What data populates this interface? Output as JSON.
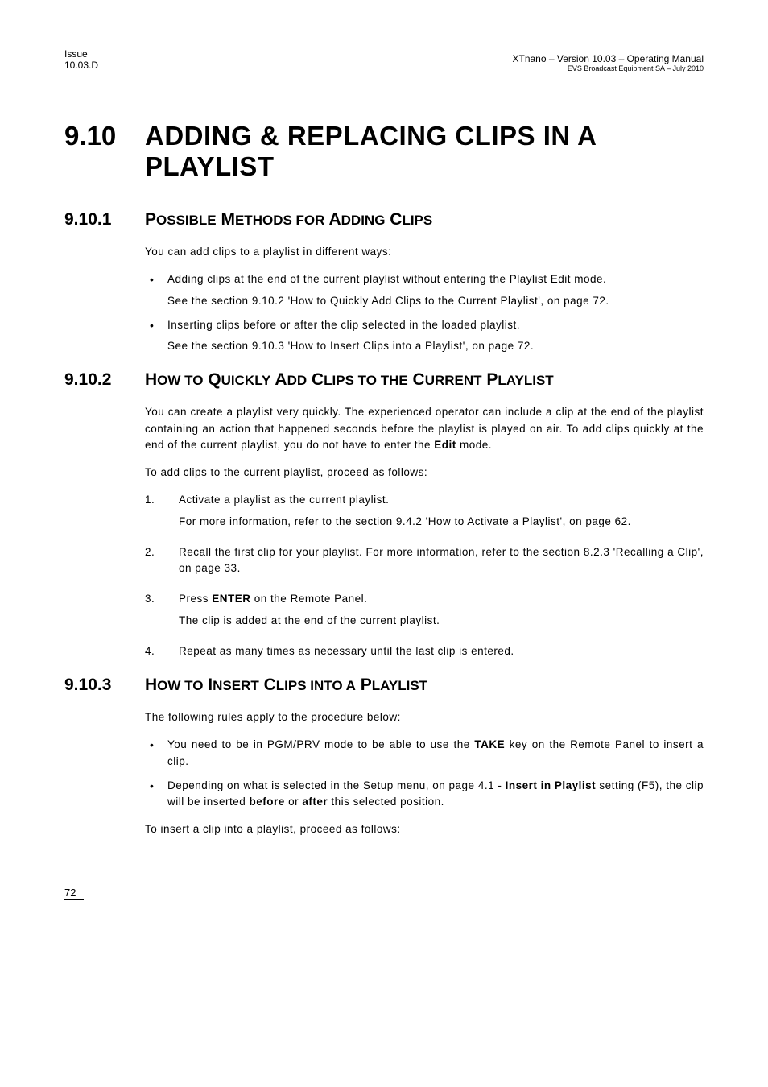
{
  "header": {
    "issue_label": "Issue",
    "issue_value": "10.03.D",
    "product_line": "XTnano – Version 10.03 – Operating Manual",
    "company_line": "EVS Broadcast Equipment SA – July 2010"
  },
  "section": {
    "number": "9.10",
    "title": "ADDING & REPLACING CLIPS IN A PLAYLIST"
  },
  "sub1": {
    "number": "9.10.1",
    "title_parts": [
      "P",
      "OSSIBLE",
      " M",
      "ETHODS FOR",
      " A",
      "DDING",
      " C",
      "LIPS"
    ],
    "intro": "You can add clips to a playlist in different ways:",
    "bullets": [
      {
        "main": "Adding clips at the end of the current playlist without entering the Playlist Edit mode.",
        "sub": "See the section 9.10.2 'How to Quickly Add Clips to the Current Playlist', on page 72."
      },
      {
        "main": "Inserting clips before or after the clip selected in the loaded playlist.",
        "sub": "See the section 9.10.3 'How to Insert Clips into a Playlist', on page 72."
      }
    ]
  },
  "sub2": {
    "number": "9.10.2",
    "title_parts": [
      "H",
      "OW TO",
      " Q",
      "UICKLY",
      " A",
      "DD",
      " C",
      "LIPS TO THE",
      " C",
      "URRENT",
      " P",
      "LAYLIST"
    ],
    "para1_a": "You can create a playlist very quickly. The experienced operator can include a clip at the end of the playlist containing an action that happened seconds before the playlist is played on air. To add clips quickly at the end of the current playlist, you do not have to enter the ",
    "para1_bold": "Edit",
    "para1_b": " mode.",
    "para2": "To add clips to the current playlist, proceed as follows:",
    "steps": [
      {
        "n": "1.",
        "main": "Activate a playlist as the current playlist.",
        "sub": "For more information, refer to the section 9.4.2 'How to Activate a Playlist', on page 62."
      },
      {
        "n": "2.",
        "main": "Recall the first clip for your playlist. For more information, refer to the section 8.2.3 'Recalling a Clip', on page 33."
      },
      {
        "n": "3.",
        "main_a": "Press ",
        "main_bold": "ENTER",
        "main_b": " on the Remote Panel.",
        "sub": "The clip is added at the end of the current playlist."
      },
      {
        "n": "4.",
        "main": "Repeat as many times as necessary until the last clip is entered."
      }
    ]
  },
  "sub3": {
    "number": "9.10.3",
    "title_parts": [
      "H",
      "OW TO",
      " I",
      "NSERT",
      " C",
      "LIPS INTO A",
      " P",
      "LAYLIST"
    ],
    "intro": "The following rules apply to the procedure below:",
    "bullets": [
      {
        "a": "You need to be in PGM/PRV mode to be able to use the ",
        "bold1": "TAKE",
        "b": " key on the Remote Panel to insert a clip."
      },
      {
        "a": "Depending on what is selected in the Setup menu, on page 4.1 - ",
        "bold1": "Insert in Playlist",
        "b": " setting (F5), the clip will be inserted ",
        "bold2": "before",
        "c": " or ",
        "bold3": "after",
        "d": " this selected position."
      }
    ],
    "outro": "To insert a clip into a playlist, proceed as follows:"
  },
  "footer": {
    "page": "72"
  }
}
